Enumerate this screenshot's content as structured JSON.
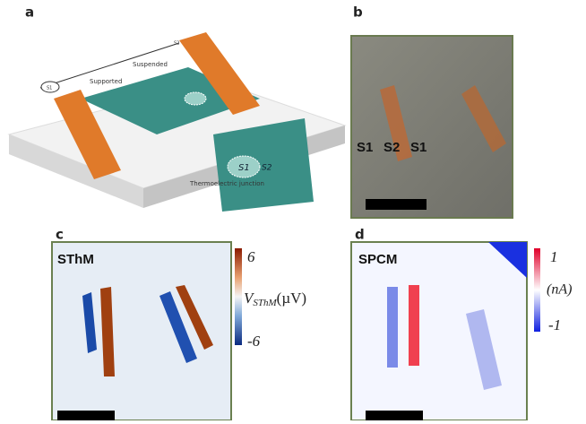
{
  "panels": [
    {
      "label": "a",
      "texts": [
        "Suspended",
        "Supported",
        "S1",
        "S2",
        "Thermoelectric junction"
      ],
      "inset": [
        "S1",
        "S2"
      ]
    },
    {
      "label": "b",
      "texts": [
        "S1",
        "S2",
        "S1"
      ]
    },
    {
      "label": "c",
      "title": "SThM",
      "colorbar": {
        "top": "6",
        "bottom": "-6",
        "quantity": "V",
        "subscript": "SThM",
        "unit": "(µV)"
      }
    },
    {
      "label": "d",
      "title": "SPCM",
      "colorbar": {
        "top": "1",
        "bottom": "-1",
        "unit": "(nA)"
      }
    }
  ]
}
